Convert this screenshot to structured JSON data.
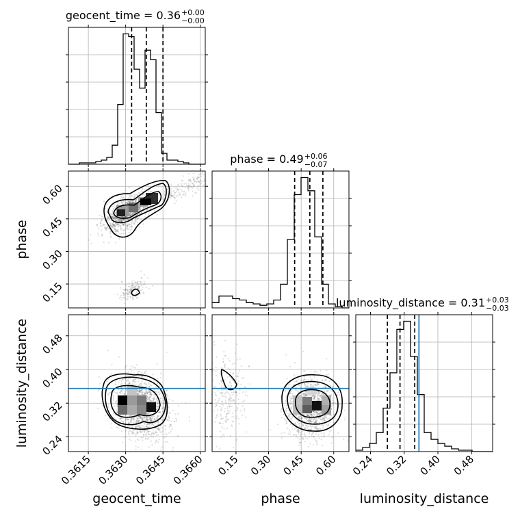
{
  "chart_data": {
    "type": "corner",
    "parameters": [
      "geocent_time",
      "phase",
      "luminosity_distance"
    ],
    "truth_color": "#1f77b4",
    "truths": {
      "luminosity_distance": 0.355
    },
    "titles": [
      {
        "param": "geocent_time",
        "label": "geocent_time = 0.36",
        "plus": "+0.00",
        "minus": "−0.00"
      },
      {
        "param": "phase",
        "label": "phase = 0.49",
        "plus": "+0.06",
        "minus": "−0.07"
      },
      {
        "param": "luminosity_distance",
        "label": "luminosity_distance = 0.31",
        "plus": "+0.03",
        "minus": "−0.03"
      }
    ],
    "axes": {
      "geocent_time": {
        "range": [
          0.3607,
          0.3662
        ],
        "ticks": [
          0.3615,
          0.363,
          0.3645,
          0.366
        ],
        "tick_labels": [
          "0.3615",
          "0.3630",
          "0.3645",
          "0.3660"
        ]
      },
      "phase": {
        "range": [
          0.04,
          0.67
        ],
        "ticks": [
          0.15,
          0.3,
          0.45,
          0.6
        ],
        "tick_labels": [
          "0.15",
          "0.30",
          "0.45",
          "0.60"
        ]
      },
      "luminosity_distance": {
        "range": [
          0.205,
          0.53
        ],
        "ticks": [
          0.24,
          0.32,
          0.4,
          0.48
        ],
        "tick_labels": [
          "0.24",
          "0.32",
          "0.40",
          "0.48"
        ]
      }
    },
    "histograms": {
      "geocent_time": {
        "edges_range": [
          0.3607,
          0.3662
        ],
        "counts": [
          0,
          0,
          1,
          1,
          1,
          2,
          3,
          5,
          14,
          44,
          96,
          94,
          70,
          56,
          84,
          77,
          38,
          8,
          3,
          3,
          2,
          1,
          0,
          0,
          0
        ],
        "quantiles": [
          0.36324,
          0.36383,
          0.3645
        ]
      },
      "phase": {
        "edges_range": [
          0.04,
          0.67
        ],
        "counts": [
          4,
          9,
          9,
          7,
          6,
          4,
          3,
          2,
          3,
          6,
          18,
          52,
          86,
          99,
          89,
          54,
          18,
          3,
          1,
          0
        ],
        "quantiles": [
          0.42,
          0.49,
          0.55
        ]
      },
      "luminosity_distance": {
        "edges_range": [
          0.205,
          0.53
        ],
        "counts": [
          1,
          3,
          6,
          14,
          32,
          58,
          90,
          96,
          70,
          42,
          14,
          9,
          6,
          4,
          2,
          1,
          1,
          0,
          0,
          0
        ],
        "quantiles": [
          0.28,
          0.31,
          0.345
        ]
      }
    },
    "grid": true,
    "ylabels": [
      "phase",
      "luminosity_distance"
    ],
    "xlabels": [
      "geocent_time",
      "phase",
      "luminosity_distance"
    ]
  }
}
